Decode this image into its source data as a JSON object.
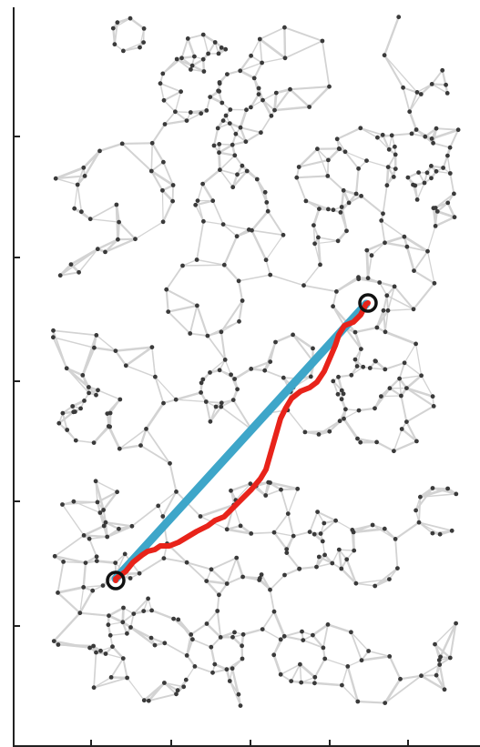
{
  "graph": {
    "edge_color": "#d3d3d3",
    "node_color": "#3a3a3a",
    "random_seed": 7
  },
  "paths": {
    "direct": {
      "color": "#3ea6c9"
    },
    "routed": {
      "color": "#e8231a"
    }
  },
  "endpoints": {
    "ring_color": "#111111"
  },
  "axes": {
    "color": "#222222",
    "x_ticks": 5,
    "y_ticks": 5
  }
}
